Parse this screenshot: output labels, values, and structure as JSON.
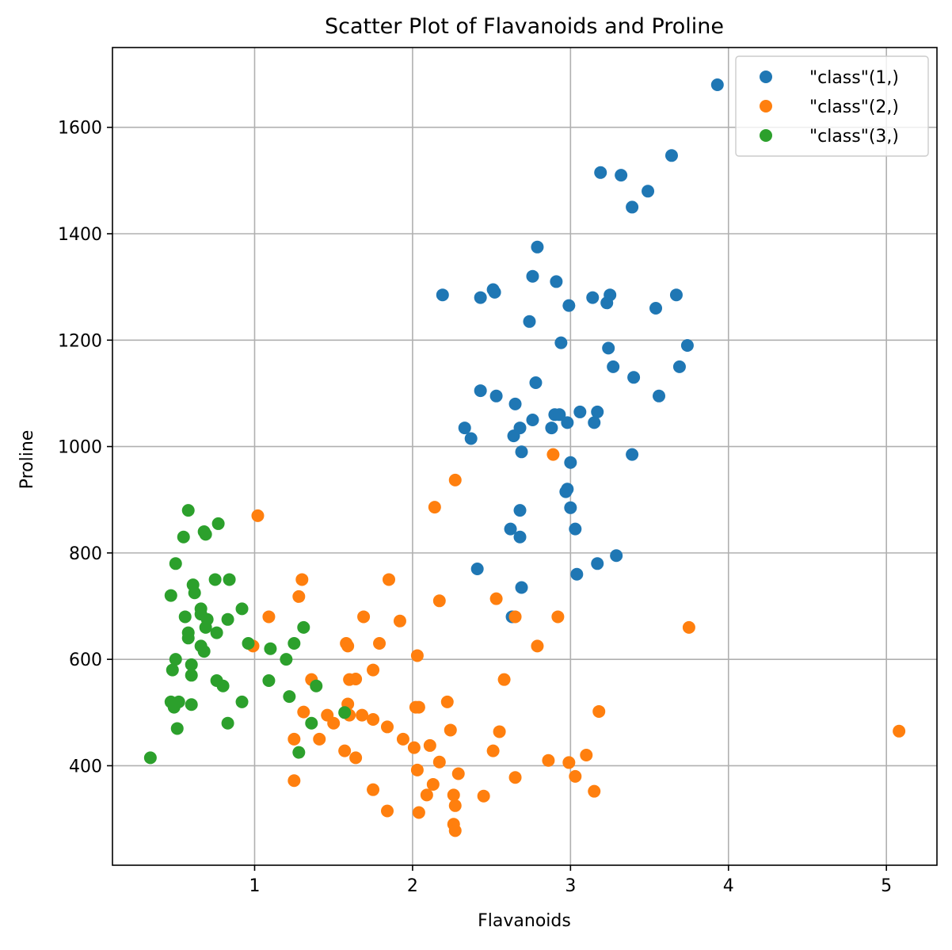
{
  "chart_data": {
    "type": "scatter",
    "title": "Scatter Plot of Flavanoids and Proline",
    "xlabel": "Flavanoids",
    "ylabel": "Proline",
    "xlim": [
      0.1,
      5.32
    ],
    "ylim": [
      213,
      1750
    ],
    "xticks": [
      1,
      2,
      3,
      4,
      5
    ],
    "yticks": [
      400,
      600,
      800,
      1000,
      1200,
      1400,
      1600
    ],
    "grid": true,
    "legend_position": "top-right",
    "series": [
      {
        "name": "\"class\"(1,)",
        "color": "#1f77b4",
        "points": [
          [
            3.93,
            1680
          ],
          [
            3.64,
            1547
          ],
          [
            3.49,
            1480
          ],
          [
            3.39,
            1450
          ],
          [
            3.19,
            1515
          ],
          [
            3.32,
            1510
          ],
          [
            2.79,
            1375
          ],
          [
            2.76,
            1320
          ],
          [
            2.91,
            1310
          ],
          [
            2.51,
            1295
          ],
          [
            2.52,
            1290
          ],
          [
            2.43,
            1280
          ],
          [
            2.19,
            1285
          ],
          [
            2.99,
            1265
          ],
          [
            3.14,
            1280
          ],
          [
            3.23,
            1270
          ],
          [
            3.25,
            1285
          ],
          [
            3.54,
            1260
          ],
          [
            3.67,
            1285
          ],
          [
            2.74,
            1235
          ],
          [
            2.94,
            1195
          ],
          [
            3.24,
            1185
          ],
          [
            3.74,
            1190
          ],
          [
            3.27,
            1150
          ],
          [
            3.69,
            1150
          ],
          [
            3.4,
            1130
          ],
          [
            2.78,
            1120
          ],
          [
            2.43,
            1105
          ],
          [
            2.53,
            1095
          ],
          [
            3.56,
            1095
          ],
          [
            2.65,
            1080
          ],
          [
            2.33,
            1035
          ],
          [
            2.37,
            1015
          ],
          [
            2.68,
            1035
          ],
          [
            2.76,
            1050
          ],
          [
            2.9,
            1060
          ],
          [
            2.93,
            1060
          ],
          [
            3.06,
            1065
          ],
          [
            3.17,
            1065
          ],
          [
            3.15,
            1045
          ],
          [
            2.98,
            1045
          ],
          [
            2.88,
            1035
          ],
          [
            2.64,
            1020
          ],
          [
            2.69,
            990
          ],
          [
            3.0,
            970
          ],
          [
            3.39,
            985
          ],
          [
            2.98,
            920
          ],
          [
            2.97,
            915
          ],
          [
            3.0,
            885
          ],
          [
            2.68,
            880
          ],
          [
            2.62,
            845
          ],
          [
            3.03,
            845
          ],
          [
            2.68,
            830
          ],
          [
            3.29,
            795
          ],
          [
            3.17,
            780
          ],
          [
            2.41,
            770
          ],
          [
            3.04,
            760
          ],
          [
            2.69,
            735
          ],
          [
            2.63,
            680
          ]
        ]
      },
      {
        "name": "\"class\"(2,)",
        "color": "#ff7f0e",
        "points": [
          [
            2.89,
            985
          ],
          [
            2.27,
            937
          ],
          [
            2.14,
            886
          ],
          [
            1.02,
            870
          ],
          [
            1.3,
            750
          ],
          [
            1.85,
            750
          ],
          [
            2.53,
            714
          ],
          [
            1.28,
            718
          ],
          [
            2.17,
            710
          ],
          [
            1.69,
            680
          ],
          [
            1.09,
            680
          ],
          [
            2.65,
            680
          ],
          [
            2.92,
            680
          ],
          [
            3.75,
            660
          ],
          [
            1.92,
            672
          ],
          [
            0.99,
            625
          ],
          [
            1.58,
            630
          ],
          [
            1.59,
            625
          ],
          [
            1.79,
            630
          ],
          [
            2.79,
            625
          ],
          [
            2.03,
            607
          ],
          [
            1.75,
            580
          ],
          [
            1.36,
            562
          ],
          [
            1.6,
            562
          ],
          [
            1.64,
            563
          ],
          [
            2.58,
            562
          ],
          [
            1.59,
            516
          ],
          [
            1.6,
            495
          ],
          [
            2.02,
            510
          ],
          [
            2.04,
            510
          ],
          [
            2.22,
            520
          ],
          [
            3.18,
            502
          ],
          [
            1.31,
            501
          ],
          [
            1.46,
            495
          ],
          [
            1.5,
            480
          ],
          [
            1.68,
            495
          ],
          [
            1.75,
            487
          ],
          [
            1.84,
            473
          ],
          [
            2.24,
            467
          ],
          [
            2.55,
            464
          ],
          [
            1.25,
            450
          ],
          [
            1.41,
            450
          ],
          [
            1.94,
            450
          ],
          [
            2.01,
            434
          ],
          [
            2.11,
            438
          ],
          [
            1.57,
            428
          ],
          [
            1.64,
            415
          ],
          [
            2.51,
            428
          ],
          [
            3.1,
            420
          ],
          [
            2.17,
            407
          ],
          [
            2.86,
            410
          ],
          [
            2.99,
            406
          ],
          [
            2.03,
            392
          ],
          [
            2.29,
            385
          ],
          [
            3.03,
            380
          ],
          [
            2.65,
            378
          ],
          [
            1.25,
            372
          ],
          [
            2.13,
            365
          ],
          [
            1.75,
            355
          ],
          [
            2.09,
            345
          ],
          [
            2.26,
            345
          ],
          [
            2.45,
            343
          ],
          [
            3.15,
            352
          ],
          [
            2.27,
            325
          ],
          [
            1.84,
            315
          ],
          [
            2.04,
            312
          ],
          [
            2.26,
            290
          ],
          [
            2.27,
            278
          ],
          [
            5.08,
            465
          ]
        ]
      },
      {
        "name": "\"class\"(3,)",
        "color": "#2ca02c",
        "points": [
          [
            0.58,
            880
          ],
          [
            0.77,
            855
          ],
          [
            0.68,
            840
          ],
          [
            0.69,
            835
          ],
          [
            0.55,
            830
          ],
          [
            0.5,
            780
          ],
          [
            0.75,
            750
          ],
          [
            0.84,
            750
          ],
          [
            0.61,
            740
          ],
          [
            0.47,
            720
          ],
          [
            0.62,
            725
          ],
          [
            0.66,
            695
          ],
          [
            0.92,
            695
          ],
          [
            0.66,
            685
          ],
          [
            0.56,
            680
          ],
          [
            0.7,
            675
          ],
          [
            0.83,
            675
          ],
          [
            0.69,
            660
          ],
          [
            1.31,
            660
          ],
          [
            0.58,
            650
          ],
          [
            0.76,
            650
          ],
          [
            0.58,
            640
          ],
          [
            0.96,
            630
          ],
          [
            1.25,
            630
          ],
          [
            0.66,
            625
          ],
          [
            0.68,
            615
          ],
          [
            1.1,
            620
          ],
          [
            0.5,
            600
          ],
          [
            1.2,
            600
          ],
          [
            0.6,
            590
          ],
          [
            0.48,
            580
          ],
          [
            0.6,
            570
          ],
          [
            0.76,
            560
          ],
          [
            1.09,
            560
          ],
          [
            0.8,
            550
          ],
          [
            1.39,
            550
          ],
          [
            1.22,
            530
          ],
          [
            0.92,
            520
          ],
          [
            0.47,
            520
          ],
          [
            0.52,
            520
          ],
          [
            0.6,
            515
          ],
          [
            0.49,
            510
          ],
          [
            0.83,
            480
          ],
          [
            1.36,
            480
          ],
          [
            1.57,
            500
          ],
          [
            0.51,
            470
          ],
          [
            1.28,
            425
          ],
          [
            0.34,
            415
          ]
        ]
      }
    ]
  }
}
